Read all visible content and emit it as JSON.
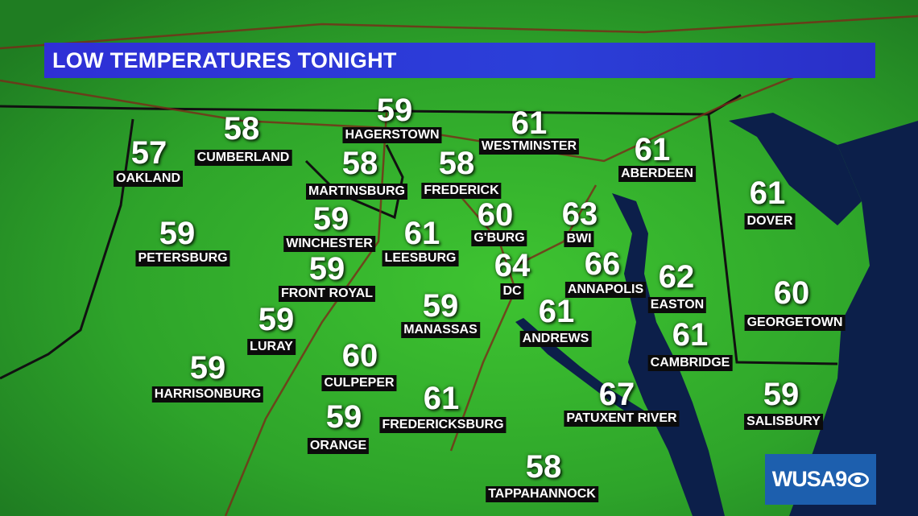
{
  "title": "LOW TEMPERATURES TONIGHT",
  "colors": {
    "land": "#2fa82a",
    "water": "#0c1f4a",
    "title_bar": "#2f35d4",
    "label_bg": "#0b0b0b"
  },
  "logo": {
    "text": "WUSA9",
    "network_icon": "cbs-eye-icon"
  },
  "cities": [
    {
      "name": "OAKLAND",
      "temp": "57"
    },
    {
      "name": "CUMBERLAND",
      "temp": "58"
    },
    {
      "name": "HAGERSTOWN",
      "temp": "59"
    },
    {
      "name": "WESTMINSTER",
      "temp": "61"
    },
    {
      "name": "ABERDEEN",
      "temp": "61"
    },
    {
      "name": "DOVER",
      "temp": "61"
    },
    {
      "name": "MARTINSBURG",
      "temp": "58"
    },
    {
      "name": "FREDERICK",
      "temp": "58"
    },
    {
      "name": "PETERSBURG",
      "temp": "59"
    },
    {
      "name": "WINCHESTER",
      "temp": "59"
    },
    {
      "name": "LEESBURG",
      "temp": "61"
    },
    {
      "name": "G'BURG",
      "temp": "60"
    },
    {
      "name": "BWI",
      "temp": "63"
    },
    {
      "name": "FRONT ROYAL",
      "temp": "59"
    },
    {
      "name": "DC",
      "temp": "64"
    },
    {
      "name": "ANNAPOLIS",
      "temp": "66"
    },
    {
      "name": "EASTON",
      "temp": "62"
    },
    {
      "name": "GEORGETOWN",
      "temp": "60"
    },
    {
      "name": "LURAY",
      "temp": "59"
    },
    {
      "name": "MANASSAS",
      "temp": "59"
    },
    {
      "name": "ANDREWS",
      "temp": "61"
    },
    {
      "name": "CAMBRIDGE",
      "temp": "61"
    },
    {
      "name": "HARRISONBURG",
      "temp": "59"
    },
    {
      "name": "CULPEPER",
      "temp": "60"
    },
    {
      "name": "FREDERICKSBURG",
      "temp": "61"
    },
    {
      "name": "PATUXENT RIVER",
      "temp": "67"
    },
    {
      "name": "SALISBURY",
      "temp": "59"
    },
    {
      "name": "ORANGE",
      "temp": "59"
    },
    {
      "name": "TAPPAHANNOCK",
      "temp": "58"
    }
  ]
}
